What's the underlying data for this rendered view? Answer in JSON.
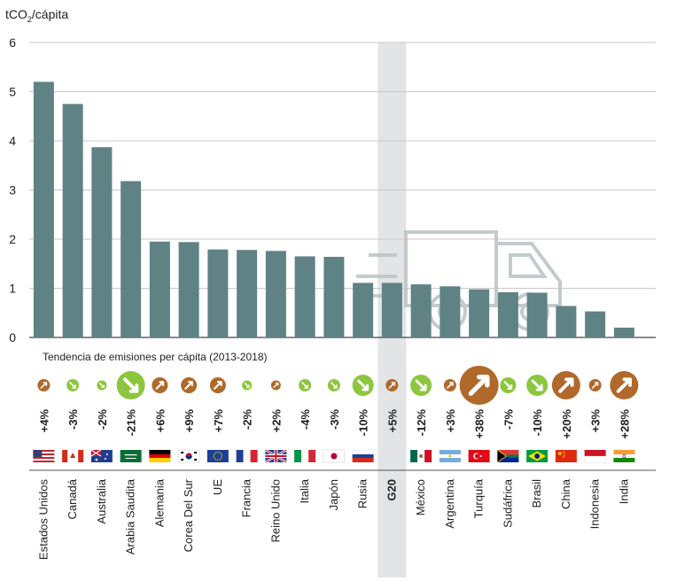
{
  "chart_data": {
    "type": "bar",
    "ylabel_main": "tCO",
    "ylabel_sub": "2",
    "ylabel_tail": "/cápita",
    "ylim": [
      0,
      6
    ],
    "yticks": [
      "0",
      "1",
      "2",
      "3",
      "4",
      "5",
      "6"
    ],
    "highlight_category": "G20",
    "trend_title": "Tendencia de emisiones per cápita (2013-2018)",
    "categories": [
      "Estados Unidos",
      "Canadá",
      "Australia",
      "Arabia Saudita",
      "Alemania",
      "Corea Del Sur",
      "UE",
      "Francia",
      "Reino Unido",
      "Italia",
      "Japón",
      "Rusia",
      "G20",
      "México",
      "Argentina",
      "Turquía",
      "Sudáfrica",
      "Brasil",
      "China",
      "Indonesia",
      "India"
    ],
    "values": [
      5.2,
      4.75,
      3.87,
      3.18,
      1.95,
      1.94,
      1.79,
      1.78,
      1.76,
      1.65,
      1.64,
      1.11,
      1.11,
      1.08,
      1.04,
      0.98,
      0.92,
      0.91,
      0.64,
      0.53,
      0.2
    ],
    "trend_labels": [
      "+4%",
      "-3%",
      "-2%",
      "-21%",
      "+6%",
      "+9%",
      "+7%",
      "-2%",
      "+2%",
      "-4%",
      "-3%",
      "-10%",
      "+5%",
      "-12%",
      "+3%",
      "+38%",
      "-7%",
      "-10%",
      "+20%",
      "+3%",
      "+28%"
    ],
    "trend_values": [
      4,
      -3,
      -2,
      -21,
      6,
      9,
      7,
      -2,
      2,
      -4,
      -3,
      -10,
      5,
      -12,
      3,
      38,
      -7,
      -10,
      20,
      3,
      28
    ],
    "flags": [
      "us",
      "ca",
      "au",
      "sa",
      "de",
      "kr",
      "eu",
      "fr",
      "gb",
      "it",
      "jp",
      "ru",
      "",
      "mx",
      "ar",
      "tr",
      "za",
      "br",
      "cn",
      "id",
      "in"
    ],
    "colors": {
      "bar": "#5f8285",
      "increase": "#b0692b",
      "decrease": "#8cc63f",
      "highlight_band": "#e3e4e5",
      "grid": "#c8c8c8",
      "truck": "#b9c2c4"
    },
    "background_icon": "truck-icon"
  }
}
